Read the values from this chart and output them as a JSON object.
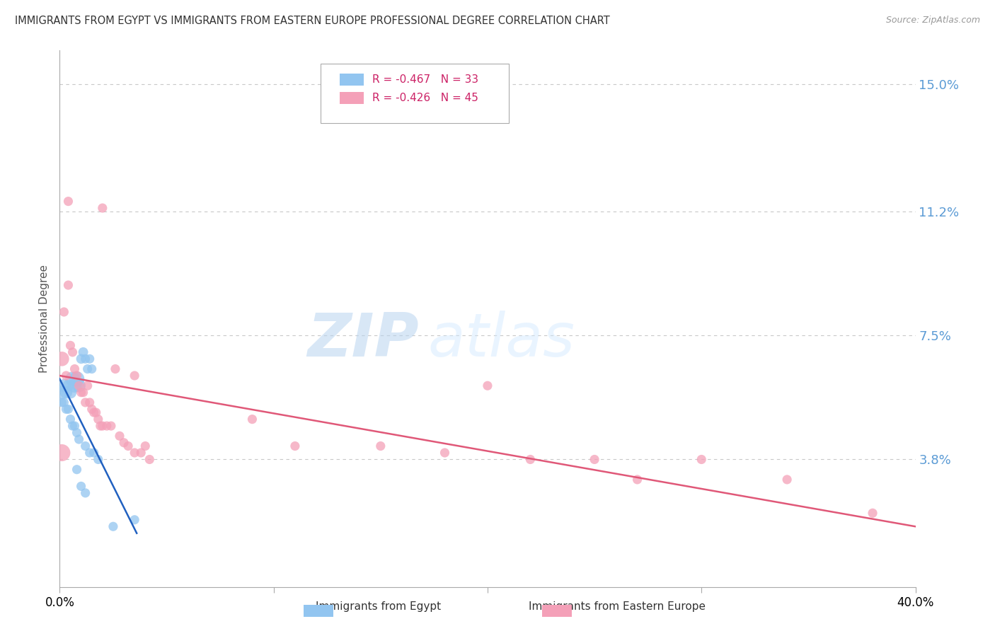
{
  "title": "IMMIGRANTS FROM EGYPT VS IMMIGRANTS FROM EASTERN EUROPE PROFESSIONAL DEGREE CORRELATION CHART",
  "source": "Source: ZipAtlas.com",
  "ylabel": "Professional Degree",
  "ytick_labels": [
    "15.0%",
    "11.2%",
    "7.5%",
    "3.8%"
  ],
  "ytick_values": [
    0.15,
    0.112,
    0.075,
    0.038
  ],
  "xlim": [
    0.0,
    0.4
  ],
  "ylim": [
    0.0,
    0.16
  ],
  "legend_line1": "R = -0.467   N = 33",
  "legend_line2": "R = -0.426   N = 45",
  "watermark_zip": "ZIP",
  "watermark_atlas": "atlas",
  "egypt_color": "#92C5F0",
  "eastern_europe_color": "#F4A0B8",
  "egypt_line_color": "#2060C0",
  "eastern_europe_line_color": "#E05878",
  "background_color": "#FFFFFF",
  "grid_color": "#C8C8C8",
  "title_color": "#333333",
  "axis_label_color": "#5B9BD5",
  "source_color": "#999999",
  "egypt_points": [
    [
      0.001,
      0.058
    ],
    [
      0.002,
      0.06
    ],
    [
      0.003,
      0.058
    ],
    [
      0.004,
      0.06
    ],
    [
      0.005,
      0.058
    ],
    [
      0.006,
      0.062
    ],
    [
      0.007,
      0.06
    ],
    [
      0.008,
      0.062
    ],
    [
      0.009,
      0.06
    ],
    [
      0.01,
      0.068
    ],
    [
      0.011,
      0.07
    ],
    [
      0.012,
      0.068
    ],
    [
      0.013,
      0.065
    ],
    [
      0.014,
      0.068
    ],
    [
      0.015,
      0.065
    ],
    [
      0.001,
      0.055
    ],
    [
      0.002,
      0.055
    ],
    [
      0.003,
      0.053
    ],
    [
      0.004,
      0.053
    ],
    [
      0.005,
      0.05
    ],
    [
      0.006,
      0.048
    ],
    [
      0.007,
      0.048
    ],
    [
      0.008,
      0.046
    ],
    [
      0.009,
      0.044
    ],
    [
      0.012,
      0.042
    ],
    [
      0.014,
      0.04
    ],
    [
      0.016,
      0.04
    ],
    [
      0.018,
      0.038
    ],
    [
      0.008,
      0.035
    ],
    [
      0.01,
      0.03
    ],
    [
      0.012,
      0.028
    ],
    [
      0.025,
      0.018
    ],
    [
      0.035,
      0.02
    ]
  ],
  "eastern_europe_points": [
    [
      0.001,
      0.068
    ],
    [
      0.002,
      0.082
    ],
    [
      0.003,
      0.063
    ],
    [
      0.004,
      0.09
    ],
    [
      0.004,
      0.115
    ],
    [
      0.005,
      0.072
    ],
    [
      0.006,
      0.07
    ],
    [
      0.007,
      0.065
    ],
    [
      0.008,
      0.063
    ],
    [
      0.009,
      0.06
    ],
    [
      0.01,
      0.058
    ],
    [
      0.011,
      0.058
    ],
    [
      0.012,
      0.055
    ],
    [
      0.013,
      0.06
    ],
    [
      0.014,
      0.055
    ],
    [
      0.015,
      0.053
    ],
    [
      0.016,
      0.052
    ],
    [
      0.017,
      0.052
    ],
    [
      0.018,
      0.05
    ],
    [
      0.019,
      0.048
    ],
    [
      0.02,
      0.048
    ],
    [
      0.022,
      0.048
    ],
    [
      0.024,
      0.048
    ],
    [
      0.026,
      0.065
    ],
    [
      0.028,
      0.045
    ],
    [
      0.03,
      0.043
    ],
    [
      0.032,
      0.042
    ],
    [
      0.035,
      0.04
    ],
    [
      0.038,
      0.04
    ],
    [
      0.04,
      0.042
    ],
    [
      0.042,
      0.038
    ],
    [
      0.001,
      0.04
    ],
    [
      0.02,
      0.113
    ],
    [
      0.035,
      0.063
    ],
    [
      0.09,
      0.05
    ],
    [
      0.11,
      0.042
    ],
    [
      0.15,
      0.042
    ],
    [
      0.18,
      0.04
    ],
    [
      0.2,
      0.06
    ],
    [
      0.22,
      0.038
    ],
    [
      0.25,
      0.038
    ],
    [
      0.27,
      0.032
    ],
    [
      0.3,
      0.038
    ],
    [
      0.34,
      0.032
    ],
    [
      0.38,
      0.022
    ]
  ],
  "egypt_sizes": [
    200,
    180,
    160,
    140,
    160,
    220,
    200,
    240,
    180,
    100,
    100,
    90,
    90,
    90,
    90,
    90,
    90,
    90,
    90,
    90,
    90,
    90,
    90,
    90,
    90,
    90,
    90,
    90,
    90,
    90,
    90,
    90,
    90
  ],
  "eastern_europe_sizes": [
    220,
    90,
    90,
    90,
    90,
    90,
    90,
    90,
    90,
    90,
    90,
    90,
    90,
    90,
    90,
    90,
    90,
    90,
    90,
    90,
    90,
    90,
    90,
    90,
    90,
    90,
    90,
    90,
    90,
    90,
    90,
    300,
    90,
    90,
    90,
    90,
    90,
    90,
    90,
    90,
    90,
    90,
    90,
    90,
    90
  ],
  "egypt_line_x": [
    0.0,
    0.036
  ],
  "egypt_line_y": [
    0.062,
    0.016
  ],
  "ee_line_x": [
    0.0,
    0.4
  ],
  "ee_line_y": [
    0.063,
    0.018
  ]
}
